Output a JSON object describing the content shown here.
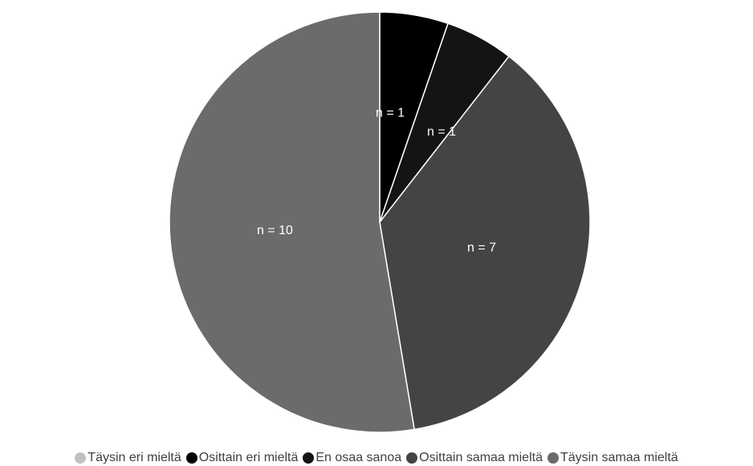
{
  "chart_data": {
    "type": "pie",
    "title": "",
    "start_angle_deg": 0,
    "direction": "clockwise",
    "legend_position": "bottom",
    "categories": [
      "Täysin eri mieltä",
      "Osittain eri mieltä",
      "En osaa sanoa",
      "Osittain samaa mieltä",
      "Täysin samaa mieltä"
    ],
    "values": [
      0,
      1,
      1,
      7,
      10
    ],
    "colors": [
      "#c0c0c0",
      "#000000",
      "#141414",
      "#444444",
      "#6b6b6b"
    ],
    "data_labels": [
      "",
      "n = 1",
      "n = 1",
      "n = 7",
      "n = 10"
    ]
  }
}
